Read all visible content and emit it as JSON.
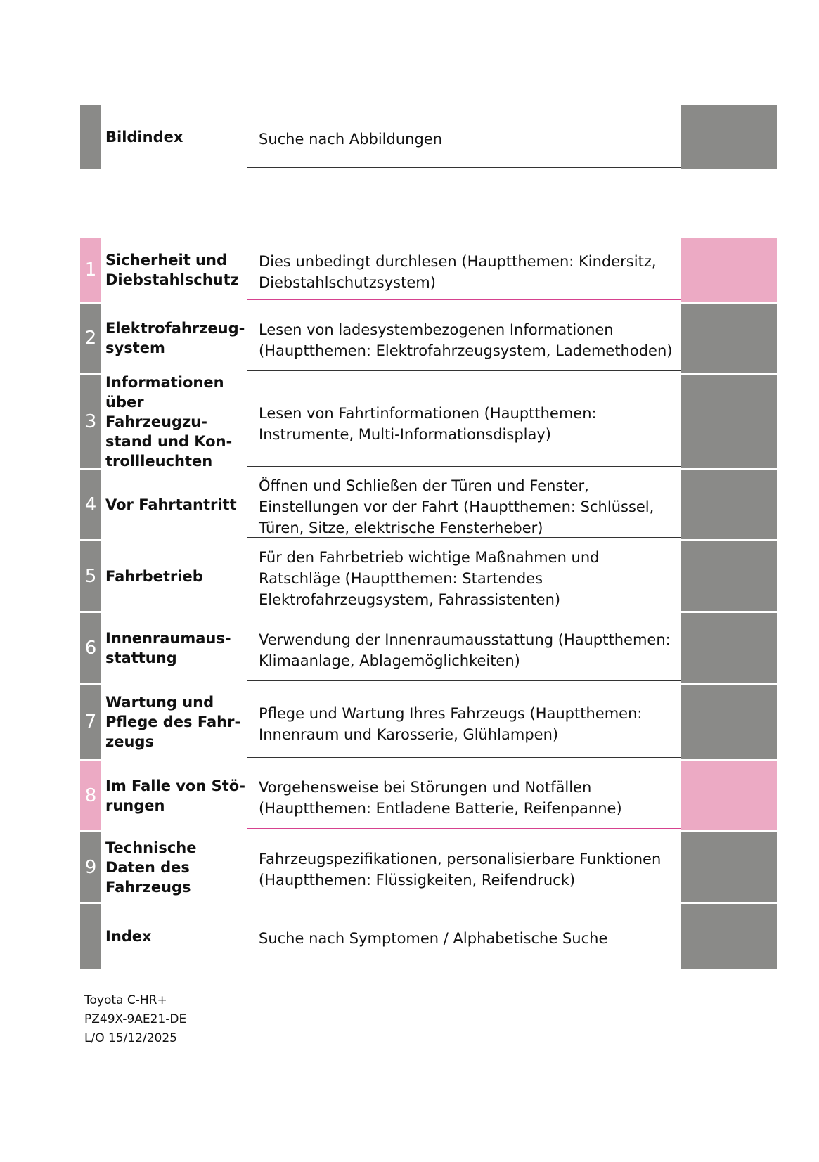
{
  "colors": {
    "gray": "#8a8a88",
    "pink": "#ecaac4",
    "pink_line": "#d6428f",
    "line": "#333333"
  },
  "rows": [
    {
      "num": "",
      "title": "Bildindex",
      "desc": "Suche nach Abbildungen",
      "accent": "gray"
    },
    {
      "num": "1",
      "title": "Sicherheit und Diebstahlschutz",
      "desc": "Dies unbedingt durchlesen (Hauptthemen: Kindersitz, Diebstahlschutzsystem)",
      "accent": "pink"
    },
    {
      "num": "2",
      "title": "Elektrofahrzeug-system",
      "desc": "Lesen von ladesystembezogenen Informationen (Hauptthemen: Elektrofahrzeugsystem, Lademethoden)",
      "accent": "gray"
    },
    {
      "num": "3",
      "title": "Informationen über Fahrzeugzu-stand und Kon-trollleuchten",
      "desc": "Lesen von Fahrtinformationen (Hauptthemen: Instrumente, Multi-Informationsdisplay)",
      "accent": "gray"
    },
    {
      "num": "4",
      "title": "Vor Fahrtantritt",
      "desc": "Öffnen und Schließen der Türen und Fenster, Einstellungen vor der Fahrt (Hauptthemen: Schlüssel, Türen, Sitze, elektrische Fensterheber)",
      "accent": "gray"
    },
    {
      "num": "5",
      "title": "Fahrbetrieb",
      "desc": "Für den Fahrbetrieb wichtige Maßnahmen und Ratschläge (Hauptthemen: Startendes Elektrofahrzeugsystem, Fahrassistenten)",
      "accent": "gray"
    },
    {
      "num": "6",
      "title": "Innenraumaus-stattung",
      "desc": "Verwendung der Innenraumausstattung (Hauptthemen: Klimaanlage, Ablagemöglichkeiten)",
      "accent": "gray"
    },
    {
      "num": "7",
      "title": "Wartung und Pflege des Fahr-zeugs",
      "desc": "Pflege und Wartung Ihres Fahrzeugs (Hauptthemen: Innenraum und Karosserie, Glühlampen)",
      "accent": "gray"
    },
    {
      "num": "8",
      "title": "Im Falle von Stö-rungen",
      "desc": "Vorgehensweise bei Störungen und Notfällen (Hauptthemen: Entladene Batterie, Reifenpanne)",
      "accent": "pink"
    },
    {
      "num": "9",
      "title": "Technische Daten des Fahrzeugs",
      "desc": "Fahrzeugspezifikationen, personalisierbare Funktionen (Hauptthemen: Flüssigkeiten, Reifendruck)",
      "accent": "gray"
    },
    {
      "num": "",
      "title": "Index",
      "desc": "Suche nach Symptomen / Alphabetische Suche",
      "accent": "gray"
    }
  ],
  "footer": {
    "model": "Toyota C-HR+",
    "code": "PZ49X-9AE21-DE",
    "date": "L/O 15/12/2025"
  }
}
